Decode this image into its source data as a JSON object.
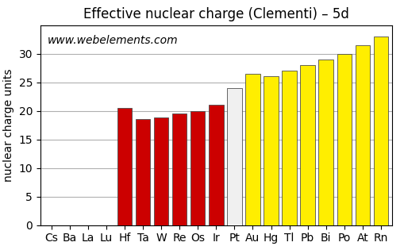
{
  "chart_data": {
    "type": "bar",
    "title": "Effective nuclear charge (Clementi) – 5d",
    "y_label": "nuclear charge units",
    "annotations": [
      "www.webelements.com"
    ],
    "categories": [
      "Cs",
      "Ba",
      "La",
      "Lu",
      "Hf",
      "Ta",
      "W",
      "Re",
      "Os",
      "Ir",
      "Pt",
      "Au",
      "Hg",
      "Tl",
      "Pb",
      "Bi",
      "Po",
      "At",
      "Rn"
    ],
    "values": [
      0.0,
      0.0,
      0.0,
      0.0,
      20.5,
      18.5,
      18.8,
      19.5,
      20.0,
      21.0,
      24.0,
      26.5,
      26.0,
      27.0,
      28.0,
      29.0,
      30.0,
      31.5,
      33.0
    ],
    "colors": [
      "#cc0000",
      "#cc0000",
      "#cc0000",
      "#cc0000",
      "#cc0000",
      "#cc0000",
      "#cc0000",
      "#cc0000",
      "#cc0000",
      "#cc0000",
      "#f0f0f0",
      "#ffee00",
      "#ffee00",
      "#ffee00",
      "#ffee00",
      "#ffee00",
      "#ffee00",
      "#ffee00",
      "#ffee00"
    ],
    "ylim": [
      0,
      35
    ],
    "yticks": [
      0,
      5,
      10,
      15,
      20,
      25,
      30
    ],
    "grid": true
  }
}
